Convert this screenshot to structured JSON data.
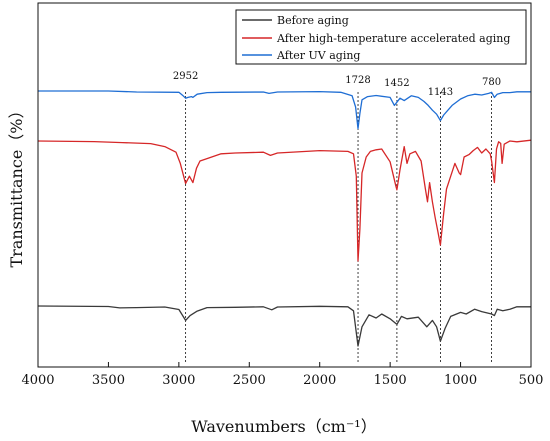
{
  "chart_data": {
    "type": "line",
    "xlabel": "Wavenumbers（cm⁻¹）",
    "ylabel": "Transmittance（%）",
    "xlim": [
      4000,
      500
    ],
    "x_reversed": true,
    "x_ticks": [
      4000,
      3500,
      3000,
      2500,
      2000,
      1500,
      1000,
      500
    ],
    "y_ticks_shown": false,
    "grid": false,
    "legend_position": "top-right",
    "series": [
      {
        "name": "Before aging",
        "color": "#3a3a3a",
        "points": [
          [
            4000,
            0.0
          ],
          [
            3500,
            -0.3
          ],
          [
            3420,
            -1.2
          ],
          [
            3300,
            -1.0
          ],
          [
            3100,
            -0.6
          ],
          [
            3000,
            -2.2
          ],
          [
            2952,
            -9.0
          ],
          [
            2920,
            -6.0
          ],
          [
            2870,
            -3.2
          ],
          [
            2800,
            -1.0
          ],
          [
            2600,
            -0.8
          ],
          [
            2400,
            -0.5
          ],
          [
            2340,
            -2.4
          ],
          [
            2300,
            -0.6
          ],
          [
            2000,
            -0.2
          ],
          [
            1800,
            -0.5
          ],
          [
            1760,
            -3.0
          ],
          [
            1728,
            -25.0
          ],
          [
            1700,
            -13.0
          ],
          [
            1650,
            -5.5
          ],
          [
            1600,
            -7.5
          ],
          [
            1560,
            -5.0
          ],
          [
            1500,
            -8.0
          ],
          [
            1452,
            -11.5
          ],
          [
            1420,
            -6.5
          ],
          [
            1380,
            -8.0
          ],
          [
            1300,
            -7.0
          ],
          [
            1240,
            -13.0
          ],
          [
            1200,
            -9.0
          ],
          [
            1170,
            -13.0
          ],
          [
            1143,
            -22.0
          ],
          [
            1110,
            -14.0
          ],
          [
            1070,
            -6.5
          ],
          [
            1000,
            -4.0
          ],
          [
            960,
            -5.0
          ],
          [
            900,
            -2.0
          ],
          [
            850,
            -3.5
          ],
          [
            780,
            -5.0
          ],
          [
            760,
            -6.0
          ],
          [
            740,
            -2.0
          ],
          [
            700,
            -3.0
          ],
          [
            650,
            -2.0
          ],
          [
            600,
            -0.5
          ],
          [
            500,
            -0.5
          ]
        ]
      },
      {
        "name": "After high-temperature accelerated aging",
        "color": "#d62728",
        "points": [
          [
            4000,
            0.0
          ],
          [
            3600,
            -0.4
          ],
          [
            3400,
            -1.0
          ],
          [
            3200,
            -1.6
          ],
          [
            3100,
            -3.5
          ],
          [
            3020,
            -7.0
          ],
          [
            2990,
            -14.0
          ],
          [
            2960,
            -24.0
          ],
          [
            2952,
            -26.5
          ],
          [
            2925,
            -22.0
          ],
          [
            2900,
            -26.0
          ],
          [
            2875,
            -17.0
          ],
          [
            2850,
            -12.5
          ],
          [
            2800,
            -11.0
          ],
          [
            2700,
            -8.0
          ],
          [
            2600,
            -7.5
          ],
          [
            2400,
            -7.0
          ],
          [
            2350,
            -9.0
          ],
          [
            2300,
            -7.5
          ],
          [
            2000,
            -6.0
          ],
          [
            1800,
            -6.5
          ],
          [
            1760,
            -8.0
          ],
          [
            1740,
            -22.0
          ],
          [
            1728,
            -75.0
          ],
          [
            1715,
            -55.0
          ],
          [
            1700,
            -20.0
          ],
          [
            1670,
            -10.0
          ],
          [
            1640,
            -6.5
          ],
          [
            1600,
            -5.5
          ],
          [
            1560,
            -5.0
          ],
          [
            1500,
            -13.0
          ],
          [
            1460,
            -28.0
          ],
          [
            1452,
            -30.5
          ],
          [
            1430,
            -18.0
          ],
          [
            1400,
            -3.5
          ],
          [
            1380,
            -14.0
          ],
          [
            1360,
            -8.0
          ],
          [
            1320,
            -6.5
          ],
          [
            1280,
            -12.5
          ],
          [
            1250,
            -30.0
          ],
          [
            1235,
            -38.0
          ],
          [
            1220,
            -26.0
          ],
          [
            1200,
            -38.0
          ],
          [
            1180,
            -48.0
          ],
          [
            1160,
            -57.0
          ],
          [
            1143,
            -65.0
          ],
          [
            1120,
            -45.0
          ],
          [
            1100,
            -30.0
          ],
          [
            1070,
            -22.0
          ],
          [
            1040,
            -14.0
          ],
          [
            1010,
            -20.0
          ],
          [
            1000,
            -21.0
          ],
          [
            975,
            -10.0
          ],
          [
            940,
            -8.5
          ],
          [
            910,
            -6.0
          ],
          [
            880,
            -4.0
          ],
          [
            850,
            -7.5
          ],
          [
            820,
            -5.0
          ],
          [
            790,
            -8.0
          ],
          [
            780,
            -12.5
          ],
          [
            760,
            -26.0
          ],
          [
            745,
            -5.0
          ],
          [
            730,
            -0.5
          ],
          [
            715,
            -1.5
          ],
          [
            705,
            -14.0
          ],
          [
            690,
            -2.0
          ],
          [
            650,
            0.0
          ],
          [
            600,
            -0.5
          ],
          [
            500,
            0.5
          ]
        ]
      },
      {
        "name": "After UV aging",
        "color": "#1f6ed4",
        "points": [
          [
            4000,
            0.0
          ],
          [
            3500,
            0.0
          ],
          [
            3300,
            -0.6
          ],
          [
            3000,
            -0.8
          ],
          [
            2970,
            -3.0
          ],
          [
            2952,
            -4.5
          ],
          [
            2935,
            -4.0
          ],
          [
            2910,
            -3.5
          ],
          [
            2900,
            -4.0
          ],
          [
            2870,
            -2.0
          ],
          [
            2800,
            -1.0
          ],
          [
            2700,
            -0.8
          ],
          [
            2400,
            -0.6
          ],
          [
            2360,
            -1.5
          ],
          [
            2300,
            -0.6
          ],
          [
            2000,
            -0.4
          ],
          [
            1850,
            -0.8
          ],
          [
            1770,
            -3.0
          ],
          [
            1745,
            -10.0
          ],
          [
            1728,
            -23.5
          ],
          [
            1715,
            -14.0
          ],
          [
            1700,
            -5.5
          ],
          [
            1660,
            -3.5
          ],
          [
            1600,
            -2.8
          ],
          [
            1500,
            -4.0
          ],
          [
            1470,
            -9.0
          ],
          [
            1452,
            -7.0
          ],
          [
            1430,
            -4.5
          ],
          [
            1400,
            -6.0
          ],
          [
            1350,
            -3.0
          ],
          [
            1300,
            -4.0
          ],
          [
            1260,
            -6.5
          ],
          [
            1230,
            -9.0
          ],
          [
            1200,
            -12.0
          ],
          [
            1170,
            -14.5
          ],
          [
            1143,
            -18.5
          ],
          [
            1120,
            -15.0
          ],
          [
            1090,
            -12.0
          ],
          [
            1060,
            -9.0
          ],
          [
            1000,
            -5.0
          ],
          [
            950,
            -3.0
          ],
          [
            900,
            -2.0
          ],
          [
            850,
            -2.5
          ],
          [
            800,
            -1.5
          ],
          [
            780,
            -0.8
          ],
          [
            760,
            -4.0
          ],
          [
            740,
            -2.0
          ],
          [
            700,
            -1.0
          ],
          [
            650,
            -1.0
          ],
          [
            600,
            -0.5
          ],
          [
            500,
            -0.5
          ]
        ]
      }
    ],
    "annotations": [
      {
        "label": "2952",
        "x": 2952
      },
      {
        "label": "1728",
        "x": 1728
      },
      {
        "label": "1452",
        "x": 1452
      },
      {
        "label": "1143",
        "x": 1143
      },
      {
        "label": "780",
        "x": 780
      }
    ]
  }
}
